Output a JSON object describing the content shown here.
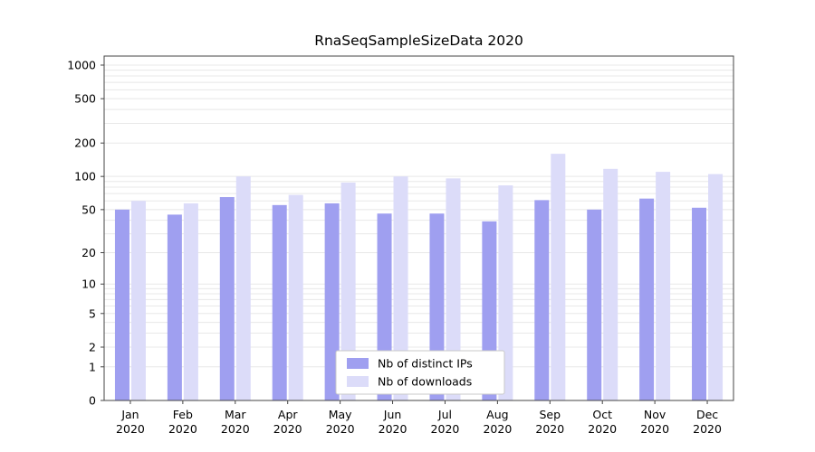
{
  "chart_data": {
    "type": "bar",
    "title": "RnaSeqSampleSizeData 2020",
    "y_scale": "log1p",
    "grid": true,
    "legend_position": "lower center",
    "categories": [
      "Jan",
      "Feb",
      "Mar",
      "Apr",
      "May",
      "Jun",
      "Jul",
      "Aug",
      "Sep",
      "Oct",
      "Nov",
      "Dec"
    ],
    "year": "2020",
    "yticks": [
      0,
      1,
      2,
      5,
      10,
      20,
      50,
      100,
      200,
      500,
      1000
    ],
    "ylim": [
      0,
      1000
    ],
    "series": [
      {
        "name": "Nb of distinct IPs",
        "color": "#9f9ff0",
        "values": [
          50,
          45,
          65,
          55,
          57,
          46,
          46,
          39,
          61,
          50,
          63,
          52
        ]
      },
      {
        "name": "Nb of downloads",
        "color": "#dcdcf9",
        "values": [
          60,
          57,
          100,
          68,
          88,
          100,
          96,
          83,
          160,
          117,
          110,
          105
        ]
      }
    ],
    "colors": {
      "spine": "#444444",
      "grid_line": "#e8e8e8",
      "text": "#000000",
      "legend_border": "#c9c9c9",
      "legend_bg": "#ffffff"
    }
  }
}
